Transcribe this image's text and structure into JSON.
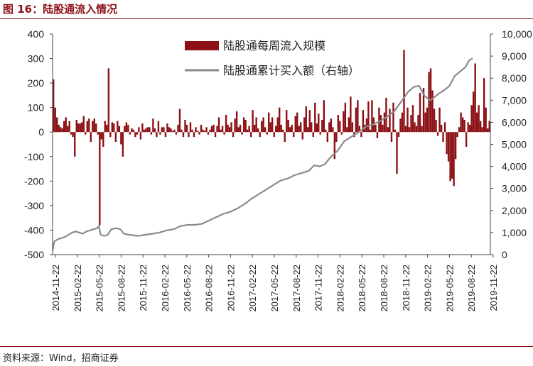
{
  "figure": {
    "label": "图 16：",
    "title": "陆股通流入情况",
    "source": "资料来源：Wind，招商证券"
  },
  "colors": {
    "bars": "#8b0f14",
    "line": "#8a8a8a",
    "accent": "#8b1014"
  },
  "chart_data": {
    "type": "bar+line",
    "title": "",
    "xlabel": "",
    "ylabel_left": "",
    "ylabel_right": "",
    "legend_position": "top-center",
    "grid": false,
    "x_tick_labels": [
      "2014-11-22",
      "2015-02-22",
      "2015-05-22",
      "2015-08-22",
      "2015-11-22",
      "2016-02-22",
      "2016-05-22",
      "2016-08-22",
      "2016-11-22",
      "2017-02-22",
      "2017-05-22",
      "2017-08-22",
      "2017-11-22",
      "2018-02-22",
      "2018-05-22",
      "2018-08-22",
      "2018-11-22",
      "2019-02-22",
      "2019-05-22",
      "2019-08-22",
      "2019-11-22"
    ],
    "y_left": {
      "min": -500,
      "max": 400,
      "ticks": [
        "400",
        "300",
        "200",
        "100",
        "0",
        "-100",
        "-200",
        "-300",
        "-400",
        "-500"
      ]
    },
    "y_right": {
      "min": 0,
      "max": 10000,
      "ticks": [
        "10,000",
        "9,000",
        "8,000",
        "7,000",
        "6,000",
        "5,000",
        "4,000",
        "3,000",
        "2,000",
        "1,000",
        "0"
      ]
    },
    "series": [
      {
        "name": "陆股通每周流入规模",
        "type": "bar",
        "axis": "left",
        "note": "weekly net inflow; one value per week starting 2014-11-22",
        "values": [
          215,
          100,
          60,
          30,
          20,
          15,
          45,
          60,
          25,
          45,
          -10,
          -20,
          -100,
          50,
          35,
          35,
          40,
          65,
          -10,
          45,
          55,
          -40,
          45,
          55,
          35,
          -10,
          -380,
          -30,
          -60,
          45,
          30,
          260,
          -20,
          40,
          35,
          -40,
          45,
          25,
          -50,
          -100,
          25,
          40,
          30,
          -10,
          15,
          10,
          -20,
          -10,
          20,
          -30,
          35,
          10,
          15,
          20,
          20,
          -10,
          55,
          15,
          -20,
          45,
          -10,
          20,
          20,
          -20,
          35,
          20,
          15,
          5,
          10,
          -10,
          30,
          95,
          10,
          -20,
          50,
          30,
          -20,
          40,
          10,
          -20,
          20,
          5,
          -10,
          30,
          10,
          5,
          20,
          -10,
          10,
          25,
          30,
          -20,
          25,
          60,
          10,
          25,
          -10,
          70,
          30,
          20,
          40,
          -20,
          55,
          85,
          20,
          30,
          -10,
          60,
          50,
          10,
          25,
          -20,
          90,
          30,
          60,
          15,
          -20,
          45,
          60,
          20,
          -10,
          80,
          40,
          60,
          -20,
          25,
          60,
          100,
          30,
          10,
          -40,
          90,
          50,
          20,
          30,
          -20,
          65,
          80,
          25,
          40,
          -30,
          60,
          105,
          20,
          90,
          40,
          -20,
          120,
          35,
          75,
          -10,
          50,
          130,
          10,
          -40,
          40,
          55,
          20,
          -110,
          -40,
          70,
          45,
          -10,
          85,
          120,
          20,
          60,
          145,
          40,
          -20,
          100,
          130,
          25,
          -20,
          90,
          30,
          55,
          125,
          10,
          130,
          60,
          30,
          -25,
          100,
          70,
          30,
          80,
          140,
          20,
          95,
          -40,
          120,
          10,
          -170,
          -20,
          55,
          80,
          335,
          25,
          100,
          20,
          70,
          110,
          40,
          25,
          70,
          160,
          25,
          180,
          80,
          100,
          245,
          260,
          170,
          95,
          50,
          -15,
          100,
          30,
          -40,
          40,
          -90,
          -120,
          -200,
          -190,
          -220,
          -110,
          -20,
          20,
          80,
          60,
          50,
          -60,
          40,
          30,
          110,
          165,
          280,
          80,
          110,
          45,
          20,
          220,
          100,
          15,
          45
        ]
      },
      {
        "name": "陆股通累计买入额（右轴）",
        "type": "line",
        "axis": "right",
        "points": [
          [
            0,
            200
          ],
          [
            1,
            600
          ],
          [
            3,
            700
          ],
          [
            5,
            750
          ],
          [
            7,
            800
          ],
          [
            9,
            900
          ],
          [
            11,
            1000
          ],
          [
            13,
            1050
          ],
          [
            15,
            1000
          ],
          [
            17,
            950
          ],
          [
            19,
            1050
          ],
          [
            21,
            1100
          ],
          [
            23,
            1150
          ],
          [
            25,
            1200
          ],
          [
            26,
            1300
          ],
          [
            27,
            900
          ],
          [
            29,
            850
          ],
          [
            31,
            900
          ],
          [
            33,
            1150
          ],
          [
            36,
            1200
          ],
          [
            38,
            1150
          ],
          [
            40,
            950
          ],
          [
            43,
            900
          ],
          [
            48,
            850
          ],
          [
            52,
            900
          ],
          [
            56,
            950
          ],
          [
            60,
            1000
          ],
          [
            64,
            1100
          ],
          [
            68,
            1150
          ],
          [
            72,
            1300
          ],
          [
            76,
            1350
          ],
          [
            80,
            1350
          ],
          [
            84,
            1400
          ],
          [
            88,
            1550
          ],
          [
            92,
            1700
          ],
          [
            96,
            1850
          ],
          [
            100,
            1950
          ],
          [
            104,
            2100
          ],
          [
            108,
            2300
          ],
          [
            112,
            2550
          ],
          [
            116,
            2750
          ],
          [
            120,
            2950
          ],
          [
            124,
            3150
          ],
          [
            128,
            3350
          ],
          [
            132,
            3450
          ],
          [
            136,
            3600
          ],
          [
            140,
            3700
          ],
          [
            144,
            3800
          ],
          [
            147,
            4050
          ],
          [
            150,
            4000
          ],
          [
            153,
            4100
          ],
          [
            156,
            4400
          ],
          [
            160,
            4700
          ],
          [
            164,
            5150
          ],
          [
            168,
            5350
          ],
          [
            172,
            5550
          ],
          [
            176,
            5800
          ],
          [
            180,
            5900
          ],
          [
            184,
            6050
          ],
          [
            188,
            6250
          ],
          [
            192,
            6500
          ],
          [
            196,
            6950
          ],
          [
            200,
            7400
          ],
          [
            203,
            7600
          ],
          [
            206,
            7650
          ],
          [
            209,
            7200
          ],
          [
            212,
            7000
          ],
          [
            214,
            7100
          ],
          [
            217,
            7300
          ],
          [
            220,
            7450
          ],
          [
            223,
            7650
          ],
          [
            226,
            8100
          ],
          [
            229,
            8300
          ],
          [
            232,
            8500
          ],
          [
            234,
            8800
          ],
          [
            236,
            8900
          ]
        ]
      }
    ]
  }
}
